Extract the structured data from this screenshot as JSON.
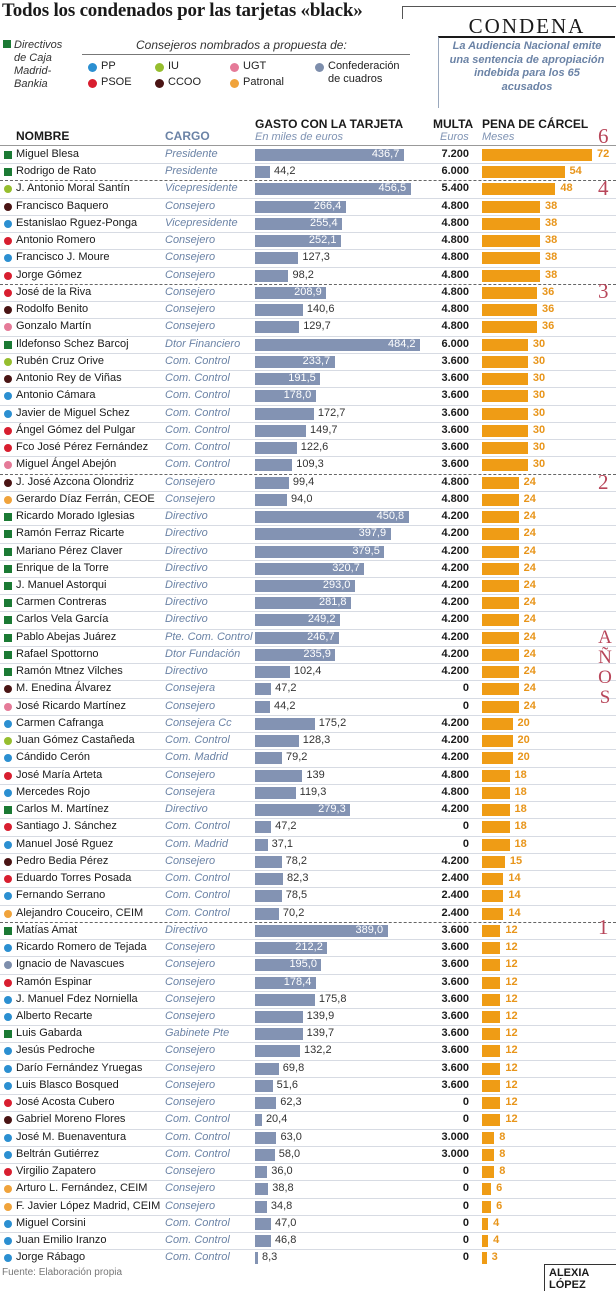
{
  "title": "Todos los condenados por las tarjetas «black»",
  "condena": {
    "title": "CONDENA",
    "text": "La Audiencia Nacional emite una sentencia de apropiación indebida para los 65 acusados"
  },
  "legend": {
    "directivos": "Directivos de Caja Madrid-Bankia",
    "consejeros_title": "Consejeros nombrados a propuesta de:",
    "items": [
      {
        "label": "PP",
        "color": "#2b8fd1"
      },
      {
        "label": "IU",
        "color": "#96be2e"
      },
      {
        "label": "UGT",
        "color": "#e57a98"
      },
      {
        "label": "PSOE",
        "color": "#d81e2f"
      },
      {
        "label": "CCOO",
        "color": "#4a1414"
      },
      {
        "label": "Patronal",
        "color": "#f0a33b"
      },
      {
        "label": "Confederación de cuadros",
        "color": "#7d8eac"
      }
    ],
    "directivo_color": "#1b7a34"
  },
  "headers": {
    "nombre": "NOMBRE",
    "cargo": "CARGO",
    "gasto": "GASTO CON LA TARJETA",
    "gasto_sub": "En miles de euros",
    "multa": "MULTA",
    "multa_sub": "Euros",
    "pena": "PENA DE CÁRCEL",
    "pena_sub": "Meses"
  },
  "year_groups": [
    "6",
    "4",
    "3",
    "2",
    "1"
  ],
  "years_label": "AÑOS",
  "footer": "Fuente: Elaboración propia",
  "author": "ALEXIA LÓPEZ",
  "chart_data": {
    "type": "table",
    "columns": [
      "Nombre",
      "Cargo",
      "Gasto con la tarjeta (miles de euros)",
      "Multa (euros)",
      "Pena de cárcel (meses)"
    ],
    "rows": [
      {
        "name": "Miguel Blesa",
        "group": "Directivo",
        "cargo": "Presidente",
        "gasto": 436.7,
        "gasto_txt": "436,7",
        "multa": "7.200",
        "pena": 72
      },
      {
        "name": "Rodrigo de Rato",
        "group": "Directivo",
        "cargo": "Presidente",
        "gasto": 44.2,
        "gasto_txt": "44,2",
        "multa": "6.000",
        "pena": 54
      },
      {
        "name": "J. Antonio Moral Santín",
        "group": "IU",
        "cargo": "Vicepresidente",
        "gasto": 456.5,
        "gasto_txt": "456,5",
        "multa": "5.400",
        "pena": 48
      },
      {
        "name": "Francisco Baquero",
        "group": "CCOO",
        "cargo": "Consejero",
        "gasto": 266.4,
        "gasto_txt": "266,4",
        "multa": "4.800",
        "pena": 38
      },
      {
        "name": "Estanislao Rguez-Ponga",
        "group": "PP",
        "cargo": "Vicepresidente",
        "gasto": 255.4,
        "gasto_txt": "255,4",
        "multa": "4.800",
        "pena": 38
      },
      {
        "name": "Antonio Romero",
        "group": "PSOE",
        "cargo": "Consejero",
        "gasto": 252.1,
        "gasto_txt": "252,1",
        "multa": "4.800",
        "pena": 38
      },
      {
        "name": "Francisco J. Moure",
        "group": "PP",
        "cargo": "Consejero",
        "gasto": 127.3,
        "gasto_txt": "127,3",
        "multa": "4.800",
        "pena": 38
      },
      {
        "name": "Jorge Gómez",
        "group": "PSOE",
        "cargo": "Consejero",
        "gasto": 98.2,
        "gasto_txt": "98,2",
        "multa": "4.800",
        "pena": 38
      },
      {
        "name": "José de la Riva",
        "group": "PSOE",
        "cargo": "Consejero",
        "gasto": 208.9,
        "gasto_txt": "208,9",
        "multa": "4.800",
        "pena": 36
      },
      {
        "name": "Rodolfo Benito",
        "group": "CCOO",
        "cargo": "Consejero",
        "gasto": 140.6,
        "gasto_txt": "140,6",
        "multa": "4.800",
        "pena": 36
      },
      {
        "name": "Gonzalo Martín",
        "group": "UGT",
        "cargo": "Consejero",
        "gasto": 129.7,
        "gasto_txt": "129,7",
        "multa": "4.800",
        "pena": 36
      },
      {
        "name": "Ildefonso Schez Barcoj",
        "group": "Directivo",
        "cargo": "Dtor Financiero",
        "gasto": 484.2,
        "gasto_txt": "484,2",
        "multa": "6.000",
        "pena": 30
      },
      {
        "name": "Rubén Cruz Orive",
        "group": "IU",
        "cargo": "Com. Control",
        "gasto": 233.7,
        "gasto_txt": "233,7",
        "multa": "3.600",
        "pena": 30
      },
      {
        "name": "Antonio Rey de Viñas",
        "group": "CCOO",
        "cargo": "Com. Control",
        "gasto": 191.5,
        "gasto_txt": "191,5",
        "multa": "3.600",
        "pena": 30
      },
      {
        "name": "Antonio Cámara",
        "group": "PP",
        "cargo": "Com. Control",
        "gasto": 178.0,
        "gasto_txt": "178,0",
        "multa": "3.600",
        "pena": 30
      },
      {
        "name": "Javier de Miguel Schez",
        "group": "PP",
        "cargo": "Com. Control",
        "gasto": 172.7,
        "gasto_txt": "172,7",
        "multa": "3.600",
        "pena": 30
      },
      {
        "name": "Ángel Gómez del Pulgar",
        "group": "PSOE",
        "cargo": "Com. Control",
        "gasto": 149.7,
        "gasto_txt": "149,7",
        "multa": "3.600",
        "pena": 30
      },
      {
        "name": "Fco José Pérez Fernández",
        "group": "PSOE",
        "cargo": "Com. Control",
        "gasto": 122.6,
        "gasto_txt": "122,6",
        "multa": "3.600",
        "pena": 30
      },
      {
        "name": "Miguel Ángel Abejón",
        "group": "UGT",
        "cargo": "Com. Control",
        "gasto": 109.3,
        "gasto_txt": "109,3",
        "multa": "3.600",
        "pena": 30
      },
      {
        "name": "J. José Azcona Olondriz",
        "group": "CCOO",
        "cargo": "Consejero",
        "gasto": 99.4,
        "gasto_txt": "99,4",
        "multa": "4.800",
        "pena": 24
      },
      {
        "name": "Gerardo Díaz Ferrán, CEOE",
        "group": "Patronal",
        "cargo": "Consejero",
        "gasto": 94.0,
        "gasto_txt": "94,0",
        "multa": "4.800",
        "pena": 24
      },
      {
        "name": "Ricardo Morado Iglesias",
        "group": "Directivo",
        "cargo": "Directivo",
        "gasto": 450.8,
        "gasto_txt": "450,8",
        "multa": "4.200",
        "pena": 24
      },
      {
        "name": "Ramón Ferraz Ricarte",
        "group": "Directivo",
        "cargo": "Directivo",
        "gasto": 397.9,
        "gasto_txt": "397,9",
        "multa": "4.200",
        "pena": 24
      },
      {
        "name": "Mariano Pérez Claver",
        "group": "Directivo",
        "cargo": "Directivo",
        "gasto": 379.5,
        "gasto_txt": "379,5",
        "multa": "4.200",
        "pena": 24
      },
      {
        "name": "Enrique de la Torre",
        "group": "Directivo",
        "cargo": "Directivo",
        "gasto": 320.7,
        "gasto_txt": "320,7",
        "multa": "4.200",
        "pena": 24
      },
      {
        "name": "J. Manuel Astorqui",
        "group": "Directivo",
        "cargo": "Directivo",
        "gasto": 293.0,
        "gasto_txt": "293,0",
        "multa": "4.200",
        "pena": 24
      },
      {
        "name": "Carmen Contreras",
        "group": "Directivo",
        "cargo": "Directivo",
        "gasto": 281.8,
        "gasto_txt": "281,8",
        "multa": "4.200",
        "pena": 24
      },
      {
        "name": "Carlos Vela García",
        "group": "Directivo",
        "cargo": "Directivo",
        "gasto": 249.2,
        "gasto_txt": "249,2",
        "multa": "4.200",
        "pena": 24
      },
      {
        "name": "Pablo Abejas Juárez",
        "group": "Directivo",
        "cargo": "Pte. Com. Control",
        "gasto": 246.7,
        "gasto_txt": "246,7",
        "multa": "4.200",
        "pena": 24
      },
      {
        "name": "Rafael Spottorno",
        "group": "Directivo",
        "cargo": "Dtor Fundación",
        "gasto": 235.9,
        "gasto_txt": "235,9",
        "multa": "4.200",
        "pena": 24
      },
      {
        "name": "Ramón Mtnez Vilches",
        "group": "Directivo",
        "cargo": "Directivo",
        "gasto": 102.4,
        "gasto_txt": "102,4",
        "multa": "4.200",
        "pena": 24
      },
      {
        "name": "M. Enedina Álvarez",
        "group": "CCOO",
        "cargo": "Consejera",
        "gasto": 47.2,
        "gasto_txt": "47,2",
        "multa": "0",
        "pena": 24
      },
      {
        "name": "José Ricardo Martínez",
        "group": "UGT",
        "cargo": "Consejero",
        "gasto": 44.2,
        "gasto_txt": "44,2",
        "multa": "0",
        "pena": 24
      },
      {
        "name": "Carmen Cafranga",
        "group": "PP",
        "cargo": "Consejera Cc",
        "gasto": 175.2,
        "gasto_txt": "175,2",
        "multa": "4.200",
        "pena": 20
      },
      {
        "name": "Juan Gómez Castañeda",
        "group": "IU",
        "cargo": "Com. Control",
        "gasto": 128.3,
        "gasto_txt": "128,3",
        "multa": "4.200",
        "pena": 20
      },
      {
        "name": "Cándido Cerón",
        "group": "PP",
        "cargo": "Com. Madrid",
        "gasto": 79.2,
        "gasto_txt": "79,2",
        "multa": "4.200",
        "pena": 20
      },
      {
        "name": "José María Arteta",
        "group": "PSOE",
        "cargo": "Consejero",
        "gasto": 139,
        "gasto_txt": "139",
        "multa": "4.800",
        "pena": 18
      },
      {
        "name": "Mercedes Rojo",
        "group": "PP",
        "cargo": "Consejera",
        "gasto": 119.3,
        "gasto_txt": "119,3",
        "multa": "4.800",
        "pena": 18
      },
      {
        "name": "Carlos M. Martínez",
        "group": "Directivo",
        "cargo": "Directivo",
        "gasto": 279.3,
        "gasto_txt": "279,3",
        "multa": "4.200",
        "pena": 18
      },
      {
        "name": "Santiago J. Sánchez",
        "group": "PSOE",
        "cargo": "Com. Control",
        "gasto": 47.2,
        "gasto_txt": "47,2",
        "multa": "0",
        "pena": 18
      },
      {
        "name": "Manuel José Rguez",
        "group": "PP",
        "cargo": "Com. Madrid",
        "gasto": 37.1,
        "gasto_txt": "37,1",
        "multa": "0",
        "pena": 18
      },
      {
        "name": "Pedro Bedia Pérez",
        "group": "CCOO",
        "cargo": "Consejero",
        "gasto": 78.2,
        "gasto_txt": "78,2",
        "multa": "4.200",
        "pena": 15
      },
      {
        "name": "Eduardo Torres Posada",
        "group": "PSOE",
        "cargo": "Com. Control",
        "gasto": 82.3,
        "gasto_txt": "82,3",
        "multa": "2.400",
        "pena": 14
      },
      {
        "name": "Fernando Serrano",
        "group": "PP",
        "cargo": "Com. Control",
        "gasto": 78.5,
        "gasto_txt": "78,5",
        "multa": "2.400",
        "pena": 14
      },
      {
        "name": "Alejandro Couceiro, CEIM",
        "group": "Patronal",
        "cargo": "Com. Control",
        "gasto": 70.2,
        "gasto_txt": "70,2",
        "multa": "2.400",
        "pena": 14
      },
      {
        "name": "Matías Amat",
        "group": "Directivo",
        "cargo": "Directivo",
        "gasto": 389.0,
        "gasto_txt": "389,0",
        "multa": "3.600",
        "pena": 12
      },
      {
        "name": "Ricardo Romero de Tejada",
        "group": "PP",
        "cargo": "Consejero",
        "gasto": 212.2,
        "gasto_txt": "212,2",
        "multa": "3.600",
        "pena": 12
      },
      {
        "name": "Ignacio de Navascues",
        "group": "Confederación de cuadros",
        "cargo": "Consejero",
        "gasto": 195.0,
        "gasto_txt": "195,0",
        "multa": "3.600",
        "pena": 12
      },
      {
        "name": "Ramón Espinar",
        "group": "PSOE",
        "cargo": "Consejero",
        "gasto": 178.4,
        "gasto_txt": "178,4",
        "multa": "3.600",
        "pena": 12
      },
      {
        "name": "J. Manuel Fdez Norniella",
        "group": "PP",
        "cargo": "Consejero",
        "gasto": 175.8,
        "gasto_txt": "175,8",
        "multa": "3.600",
        "pena": 12
      },
      {
        "name": "Alberto Recarte",
        "group": "PP",
        "cargo": "Consejero",
        "gasto": 139.9,
        "gasto_txt": "139,9",
        "multa": "3.600",
        "pena": 12
      },
      {
        "name": "Luis Gabarda",
        "group": "Directivo",
        "cargo": "Gabinete Pte",
        "gasto": 139.7,
        "gasto_txt": "139,7",
        "multa": "3.600",
        "pena": 12
      },
      {
        "name": "Jesús Pedroche",
        "group": "PP",
        "cargo": "Consejero",
        "gasto": 132.2,
        "gasto_txt": "132,2",
        "multa": "3.600",
        "pena": 12
      },
      {
        "name": "Darío Fernández Yruegas",
        "group": "PP",
        "cargo": "Consejero",
        "gasto": 69.8,
        "gasto_txt": "69,8",
        "multa": "3.600",
        "pena": 12
      },
      {
        "name": "Luis Blasco Bosqued",
        "group": "PP",
        "cargo": "Consejero",
        "gasto": 51.6,
        "gasto_txt": "51,6",
        "multa": "3.600",
        "pena": 12
      },
      {
        "name": "José Acosta Cubero",
        "group": "PSOE",
        "cargo": "Consejero",
        "gasto": 62.3,
        "gasto_txt": "62,3",
        "multa": "0",
        "pena": 12
      },
      {
        "name": "Gabriel Moreno Flores",
        "group": "CCOO",
        "cargo": "Com. Control",
        "gasto": 20.4,
        "gasto_txt": "20,4",
        "multa": "0",
        "pena": 12
      },
      {
        "name": "José M. Buenaventura",
        "group": "PP",
        "cargo": "Com. Control",
        "gasto": 63.0,
        "gasto_txt": "63,0",
        "multa": "3.000",
        "pena": 8
      },
      {
        "name": "Beltrán Gutiérrez",
        "group": "PP",
        "cargo": "Com. Control",
        "gasto": 58.0,
        "gasto_txt": "58,0",
        "multa": "3.000",
        "pena": 8
      },
      {
        "name": "Virgilio Zapatero",
        "group": "PSOE",
        "cargo": "Consejero",
        "gasto": 36.0,
        "gasto_txt": "36,0",
        "multa": "0",
        "pena": 8
      },
      {
        "name": "Arturo L. Fernández, CEIM",
        "group": "Patronal",
        "cargo": "Consejero",
        "gasto": 38.8,
        "gasto_txt": "38,8",
        "multa": "0",
        "pena": 6
      },
      {
        "name": "F. Javier López Madrid, CEIM",
        "group": "Patronal",
        "cargo": "Consejero",
        "gasto": 34.8,
        "gasto_txt": "34,8",
        "multa": "0",
        "pena": 6
      },
      {
        "name": "Miguel Corsini",
        "group": "PP",
        "cargo": "Com. Control",
        "gasto": 47.0,
        "gasto_txt": "47,0",
        "multa": "0",
        "pena": 4
      },
      {
        "name": "Juan Emilio Iranzo",
        "group": "PP",
        "cargo": "Com. Control",
        "gasto": 46.8,
        "gasto_txt": "46,8",
        "multa": "0",
        "pena": 4
      },
      {
        "name": "Jorge Rábago",
        "group": "PP",
        "cargo": "Com. Control",
        "gasto": 8.3,
        "gasto_txt": "8,3",
        "multa": "0",
        "pena": 3
      }
    ]
  }
}
